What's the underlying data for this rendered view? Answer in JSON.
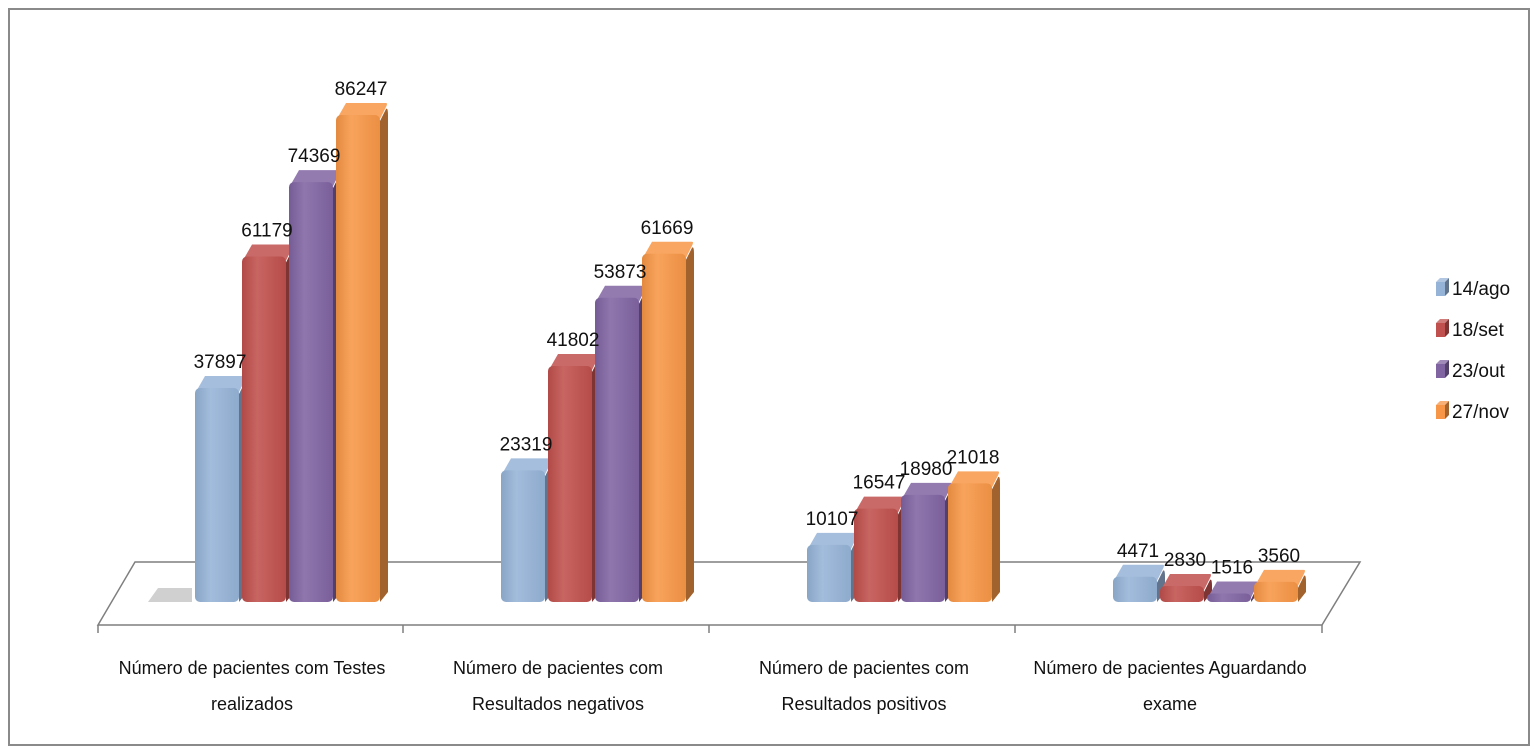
{
  "chart_data": {
    "type": "bar",
    "title": "",
    "xlabel": "",
    "ylabel": "",
    "ylim": [
      0,
      90000
    ],
    "grid": false,
    "legend": "right",
    "categories": [
      [
        "Número de pacientes com Testes",
        "realizados"
      ],
      [
        "Número de pacientes com",
        "Resultados negativos"
      ],
      [
        "Número de pacientes com",
        "Resultados positivos"
      ],
      [
        "Número de pacientes Aguardando",
        "exame"
      ]
    ],
    "series": [
      {
        "name": "14/ago",
        "values": [
          37897,
          23319,
          10107,
          4471
        ],
        "color": "#95b3d7"
      },
      {
        "name": "18/set",
        "values": [
          61179,
          41802,
          16547,
          2830
        ],
        "color": "#c0504d"
      },
      {
        "name": "23/out",
        "values": [
          74369,
          53873,
          18980,
          1516
        ],
        "color": "#8064a2"
      },
      {
        "name": "27/nov",
        "values": [
          86247,
          61669,
          21018,
          3560
        ],
        "color": "#f79646"
      }
    ]
  }
}
